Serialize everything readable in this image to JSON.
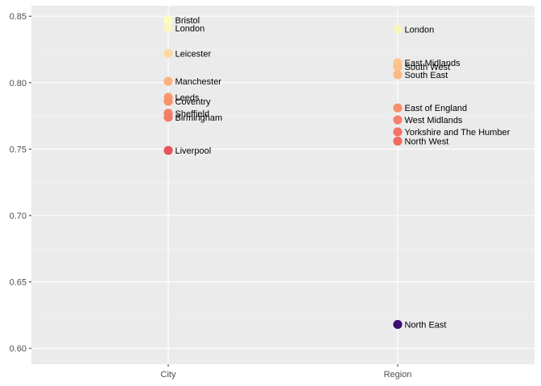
{
  "chart_data": {
    "type": "scatter",
    "categories": [
      "City",
      "Region"
    ],
    "ylim": [
      0.588,
      0.858
    ],
    "yticks": [
      0.6,
      0.65,
      0.7,
      0.75,
      0.8,
      0.85
    ],
    "ytick_labels": [
      "0.60",
      "0.65",
      "0.70",
      "0.75",
      "0.80",
      "0.85"
    ],
    "grid": true,
    "colors": {
      "panel": "#ebebeb",
      "grid_major": "#ffffff",
      "grid_minor": "#f5f5f5"
    },
    "points": [
      {
        "category": "City",
        "label": "Bristol",
        "value": 0.847,
        "color": "#fcfdbf"
      },
      {
        "category": "City",
        "label": "London",
        "value": 0.841,
        "color": "#fbf7c1"
      },
      {
        "category": "City",
        "label": "Leicester",
        "value": 0.822,
        "color": "#fdd9a0"
      },
      {
        "category": "City",
        "label": "Manchester",
        "value": 0.801,
        "color": "#fcb27c"
      },
      {
        "category": "City",
        "label": "Leeds",
        "value": 0.789,
        "color": "#fa9a6e"
      },
      {
        "category": "City",
        "label": "Coventry",
        "value": 0.786,
        "color": "#f99169"
      },
      {
        "category": "City",
        "label": "Sheffield",
        "value": 0.777,
        "color": "#f6806a"
      },
      {
        "category": "City",
        "label": "Birmingham",
        "value": 0.774,
        "color": "#f47a68"
      },
      {
        "category": "City",
        "label": "Liverpool",
        "value": 0.749,
        "color": "#e4555c"
      },
      {
        "category": "Region",
        "label": "London",
        "value": 0.84,
        "color": "#fcf4bf"
      },
      {
        "category": "Region",
        "label": "East Midlands",
        "value": 0.815,
        "color": "#fdc58c"
      },
      {
        "category": "Region",
        "label": "South West",
        "value": 0.812,
        "color": "#fdc089"
      },
      {
        "category": "Region",
        "label": "South East",
        "value": 0.806,
        "color": "#fdb983"
      },
      {
        "category": "Region",
        "label": "East of England",
        "value": 0.781,
        "color": "#f88e6c"
      },
      {
        "category": "Region",
        "label": "West Midlands",
        "value": 0.772,
        "color": "#f6806a"
      },
      {
        "category": "Region",
        "label": "Yorkshire and The Humber",
        "value": 0.763,
        "color": "#f37367"
      },
      {
        "category": "Region",
        "label": "North West",
        "value": 0.756,
        "color": "#ef6a62"
      },
      {
        "category": "Region",
        "label": "North East",
        "value": 0.618,
        "color": "#3b0f6f"
      }
    ]
  }
}
